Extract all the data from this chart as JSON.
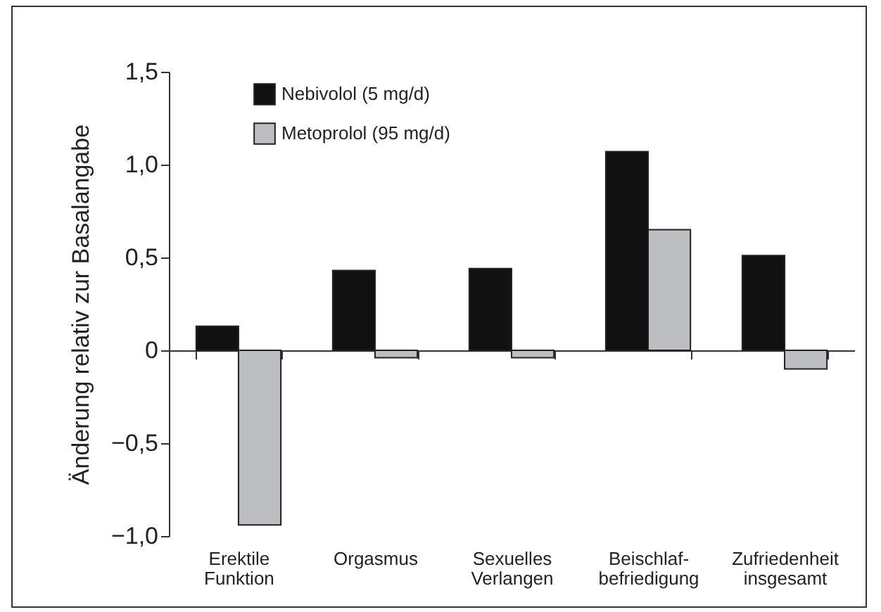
{
  "chart_data": {
    "type": "bar",
    "ylabel": "Änderung relativ zur Basalangabe",
    "categories": [
      "Erektile\nFunktion",
      "Orgasmus",
      "Sexuelles\nVerlangen",
      "Beischlaf-\nbefriedigung",
      "Zufriedenheit\ninsgesamt"
    ],
    "series": [
      {
        "name": "Nebivolol (5 mg/d)",
        "color": "#111111",
        "values": [
          0.13,
          0.43,
          0.44,
          1.07,
          0.51
        ]
      },
      {
        "name": "Metoprolol (95 mg/d)",
        "color": "#bcbec1",
        "values": [
          -0.94,
          -0.04,
          -0.04,
          0.65,
          -0.1
        ]
      }
    ],
    "ylim": [
      -1,
      1.5
    ],
    "yticks": [
      {
        "value": -1,
        "label": "−1,0"
      },
      {
        "value": -0.5,
        "label": "−0,5"
      },
      0,
      {
        "value": 0.5,
        "label": "0,5"
      },
      {
        "value": 1,
        "label": "1,0"
      },
      {
        "value": 1.5,
        "label": "1,5"
      }
    ],
    "legend": "top left"
  }
}
